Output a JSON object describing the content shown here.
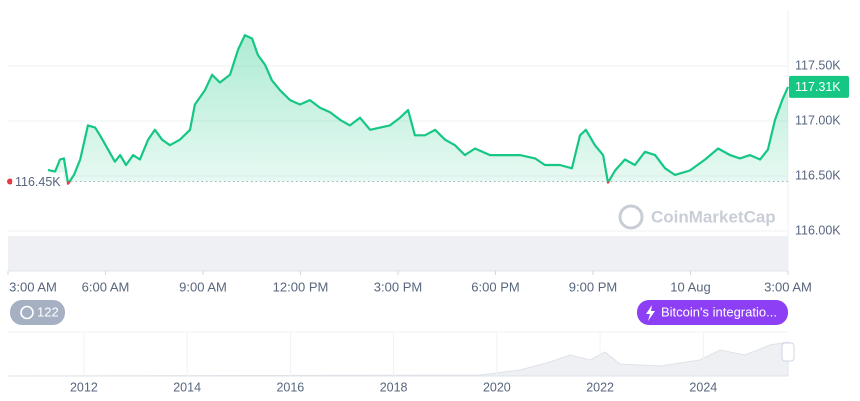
{
  "chart_data": {
    "type": "line",
    "color": "#16c784",
    "down_color": "#ea3943",
    "grid": true,
    "xlim": [
      0,
      24
    ],
    "xticks": [
      {
        "value": 0,
        "label": "3:00 AM"
      },
      {
        "value": 3,
        "label": "6:00 AM"
      },
      {
        "value": 6,
        "label": "9:00 AM"
      },
      {
        "value": 9,
        "label": "12:00 PM"
      },
      {
        "value": 12,
        "label": "3:00 PM"
      },
      {
        "value": 15,
        "label": "6:00 PM"
      },
      {
        "value": 18,
        "label": "9:00 PM"
      },
      {
        "value": 21,
        "label": "10 Aug"
      },
      {
        "value": 24,
        "label": "3:00 AM"
      }
    ],
    "ylim": [
      116000,
      118000
    ],
    "yticks": [
      {
        "value": 116000,
        "label": "116.00K"
      },
      {
        "value": 116500,
        "label": "116.50K"
      },
      {
        "value": 117000,
        "label": "117.00K"
      },
      {
        "value": 117500,
        "label": "117.50K"
      }
    ],
    "x": [
      1.23,
      1.45,
      1.6,
      1.72,
      1.85,
      2.03,
      2.22,
      2.46,
      2.68,
      2.83,
      3.08,
      3.29,
      3.45,
      3.63,
      3.85,
      4.06,
      4.31,
      4.52,
      4.74,
      4.98,
      5.29,
      5.6,
      5.75,
      6.06,
      6.28,
      6.52,
      6.83,
      7.08,
      7.29,
      7.51,
      7.69,
      7.91,
      8.12,
      8.37,
      8.68,
      8.98,
      9.29,
      9.6,
      9.91,
      10.22,
      10.52,
      10.83,
      11.14,
      11.45,
      11.75,
      12.06,
      12.31,
      12.52,
      12.83,
      13.14,
      13.45,
      13.75,
      14.06,
      14.37,
      14.83,
      15.29,
      15.75,
      16.22,
      16.52,
      16.98,
      17.35,
      17.6,
      17.78,
      18.06,
      18.31,
      18.46,
      18.68,
      18.98,
      19.29,
      19.6,
      19.91,
      20.22,
      20.52,
      20.98,
      21.45,
      21.85,
      22.22,
      22.52,
      22.83,
      23.14,
      23.38,
      23.6,
      23.82,
      24
    ],
    "values": [
      116555,
      116540,
      116650,
      116660,
      116430,
      116510,
      116650,
      116960,
      116940,
      116870,
      116740,
      116630,
      116690,
      116600,
      116690,
      116650,
      116830,
      116920,
      116830,
      116780,
      116830,
      116920,
      117150,
      117280,
      117420,
      117350,
      117420,
      117650,
      117780,
      117750,
      117600,
      117510,
      117370,
      117280,
      117190,
      117150,
      117190,
      117120,
      117080,
      117010,
      116960,
      117030,
      116920,
      116940,
      116960,
      117030,
      117100,
      116870,
      116870,
      116920,
      116830,
      116780,
      116690,
      116750,
      116690,
      116690,
      116690,
      116660,
      116600,
      116600,
      116570,
      116870,
      116920,
      116780,
      116690,
      116440,
      116550,
      116650,
      116600,
      116720,
      116690,
      116570,
      116510,
      116550,
      116650,
      116750,
      116690,
      116660,
      116690,
      116650,
      116740,
      117010,
      117190,
      117310
    ],
    "reference": {
      "value": 116450,
      "label": "116.45K"
    },
    "last_price": {
      "value": 117310,
      "label": "117.31K"
    },
    "watermark": "CoinMarketCap",
    "badges": {
      "count": "122",
      "event": "Bitcoin's integratio..."
    },
    "navigator": {
      "xlim": [
        2010.53,
        2025.64
      ],
      "xticks": [
        2012,
        2014,
        2016,
        2018,
        2020,
        2022,
        2024
      ]
    }
  }
}
